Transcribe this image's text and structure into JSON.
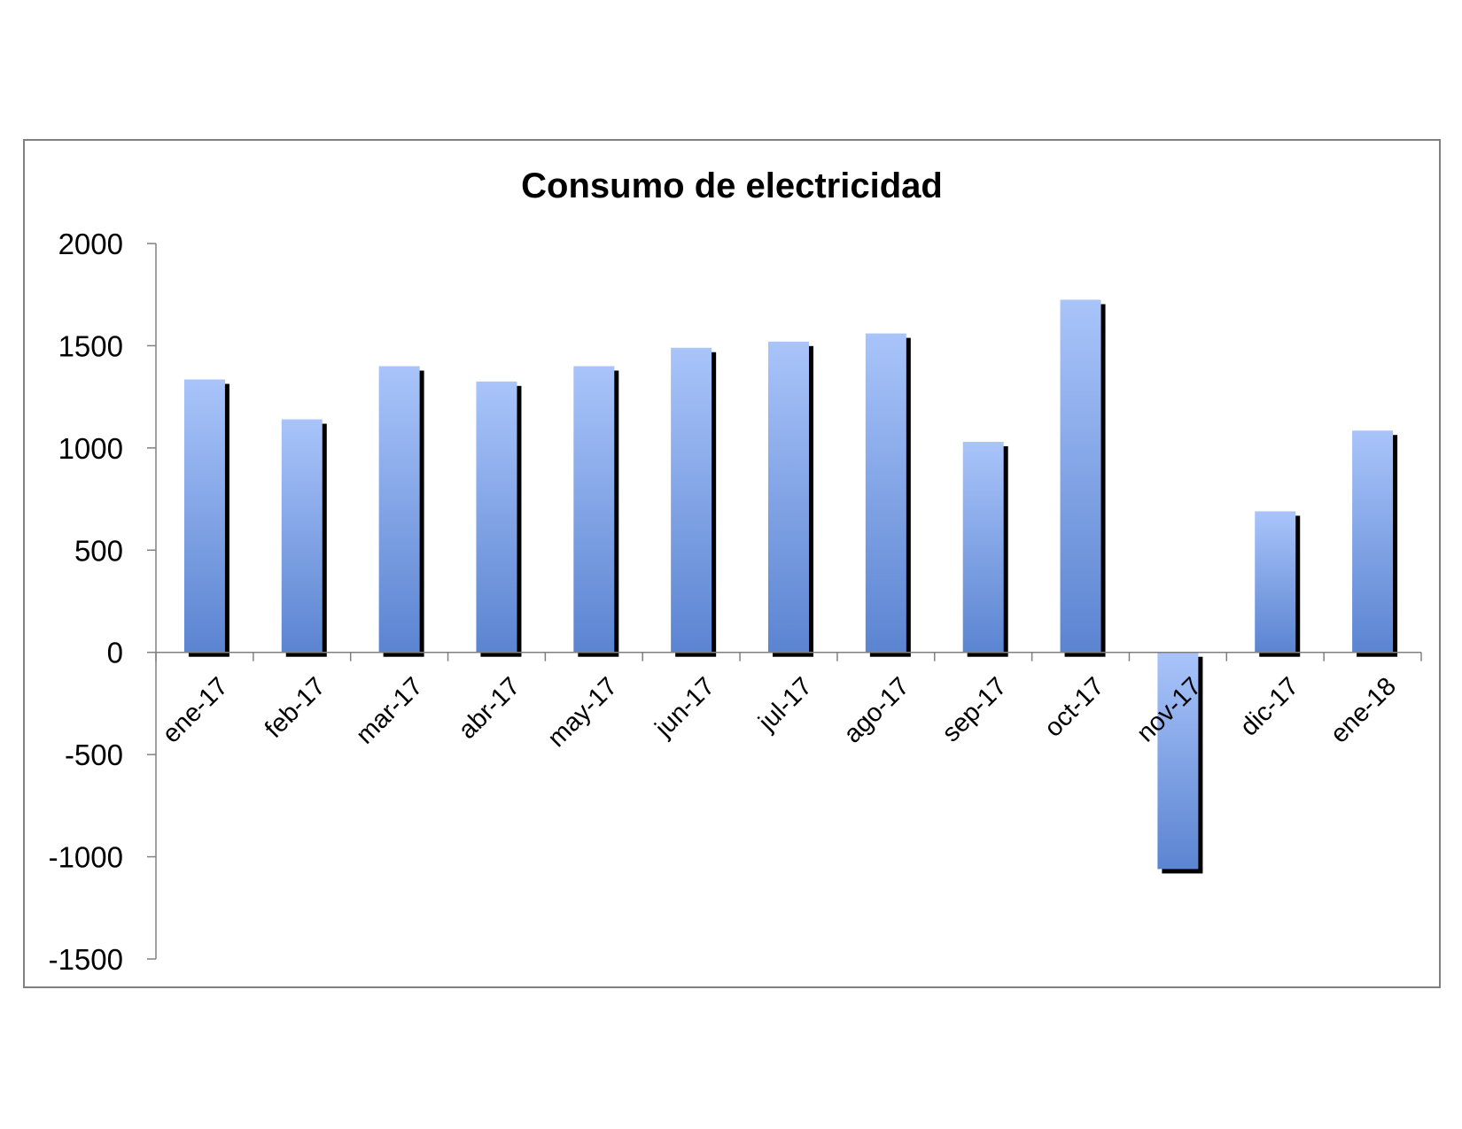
{
  "chart_data": {
    "type": "bar",
    "title": "Consumo de electricidad",
    "xlabel": "",
    "ylabel": "",
    "categories": [
      "ene-17",
      "feb-17",
      "mar-17",
      "abr-17",
      "may-17",
      "jun-17",
      "jul-17",
      "ago-17",
      "sep-17",
      "oct-17",
      "nov-17",
      "dic-17",
      "ene-18"
    ],
    "values": [
      1335,
      1140,
      1400,
      1325,
      1400,
      1490,
      1520,
      1560,
      1030,
      1725,
      -1060,
      690,
      1085
    ],
    "ylim": [
      -1500,
      2000
    ],
    "yticks": [
      2000,
      1500,
      1000,
      500,
      0,
      -500,
      -1000,
      -1500
    ],
    "ytick_labels": [
      "2000",
      "1500",
      "1000",
      "500",
      "0",
      "-500",
      "-1000",
      "-1500"
    ],
    "grid": false,
    "legend": "none",
    "colors": {
      "bar_top": "#a9c4fa",
      "bar_bottom": "#5b84d1",
      "bar_shadow": "#000000",
      "axis": "#808080",
      "frame": "#808080"
    }
  }
}
